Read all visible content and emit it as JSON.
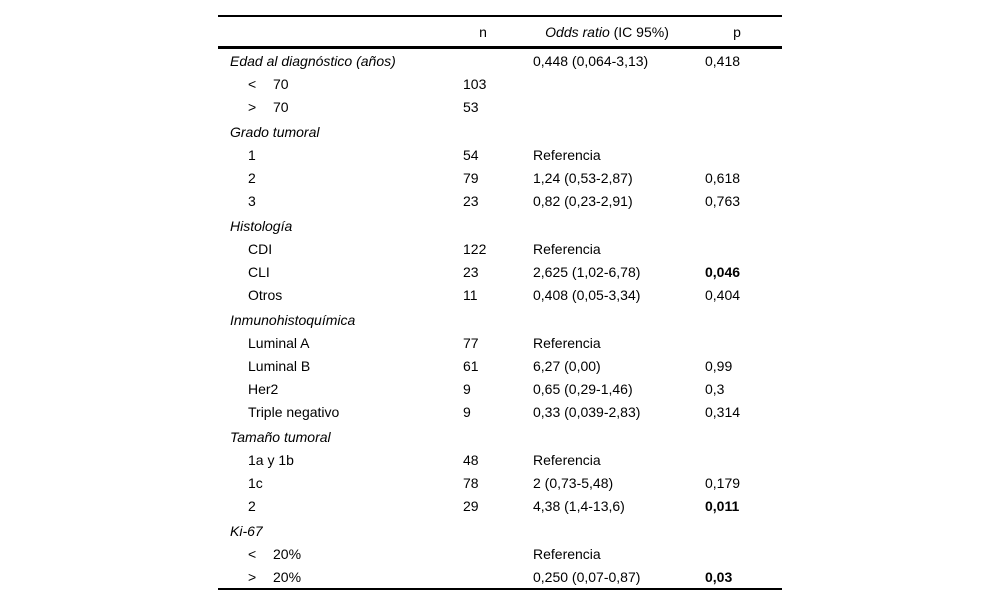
{
  "table": {
    "headers": {
      "n": "n",
      "or_italic": "Odds ratio",
      "or_rest": " (IC 95%)",
      "p": "p"
    },
    "sections": [
      {
        "label": "Edad al diagnóstico (años)",
        "n": "",
        "or": "0,448 (0,064-3,13)",
        "p": "0,418",
        "p_bold": false,
        "rows": [
          {
            "symbol": "<",
            "label": "70",
            "n": "103",
            "or": "",
            "p": "",
            "p_bold": false
          },
          {
            "symbol": ">",
            "label": "70",
            "n": "53",
            "or": "",
            "p": "",
            "p_bold": false
          }
        ]
      },
      {
        "label": "Grado tumoral",
        "n": "",
        "or": "",
        "p": "",
        "p_bold": false,
        "rows": [
          {
            "symbol": "",
            "label": "1",
            "n": "54",
            "or": "Referencia",
            "p": "",
            "p_bold": false
          },
          {
            "symbol": "",
            "label": "2",
            "n": "79",
            "or": "1,24 (0,53-2,87)",
            "p": "0,618",
            "p_bold": false
          },
          {
            "symbol": "",
            "label": "3",
            "n": "23",
            "or": "0,82 (0,23-2,91)",
            "p": "0,763",
            "p_bold": false
          }
        ]
      },
      {
        "label": "Histología",
        "n": "",
        "or": "",
        "p": "",
        "p_bold": false,
        "rows": [
          {
            "symbol": "",
            "label": "CDI",
            "n": "122",
            "or": "Referencia",
            "p": "",
            "p_bold": false
          },
          {
            "symbol": "",
            "label": "CLI",
            "n": "23",
            "or": "2,625 (1,02-6,78)",
            "p": "0,046",
            "p_bold": true
          },
          {
            "symbol": "",
            "label": "Otros",
            "n": "11",
            "or": "0,408 (0,05-3,34)",
            "p": "0,404",
            "p_bold": false
          }
        ]
      },
      {
        "label": "Inmunohistoquímica",
        "n": "",
        "or": "",
        "p": "",
        "p_bold": false,
        "rows": [
          {
            "symbol": "",
            "label": "Luminal A",
            "n": "77",
            "or": "Referencia",
            "p": "",
            "p_bold": false
          },
          {
            "symbol": "",
            "label": "Luminal B",
            "n": "61",
            "or": "6,27 (0,00)",
            "p": "0,99",
            "p_bold": false
          },
          {
            "symbol": "",
            "label": "Her2",
            "n": "9",
            "or": "0,65 (0,29-1,46)",
            "p": "0,3",
            "p_bold": false
          },
          {
            "symbol": "",
            "label": "Triple negativo",
            "n": "9",
            "or": "0,33 (0,039-2,83)",
            "p": "0,314",
            "p_bold": false
          }
        ]
      },
      {
        "label": "Tamaño tumoral",
        "n": "",
        "or": "",
        "p": "",
        "p_bold": false,
        "rows": [
          {
            "symbol": "",
            "label": "1a y 1b",
            "n": "48",
            "or": "Referencia",
            "p": "",
            "p_bold": false
          },
          {
            "symbol": "",
            "label": "1c",
            "n": "78",
            "or": "2 (0,73-5,48)",
            "p": "0,179",
            "p_bold": false
          },
          {
            "symbol": "",
            "label": "2",
            "n": "29",
            "or": "4,38 (1,4-13,6)",
            "p": "0,011",
            "p_bold": true
          }
        ]
      },
      {
        "label": "Ki-67",
        "n": "",
        "or": "",
        "p": "",
        "p_bold": false,
        "rows": [
          {
            "symbol": "<",
            "label": "20%",
            "n": "",
            "or": "Referencia",
            "p": "",
            "p_bold": false
          },
          {
            "symbol": ">",
            "label": "20%",
            "n": "",
            "or": "0,250 (0,07-0,87)",
            "p": "0,03",
            "p_bold": true
          }
        ]
      }
    ]
  }
}
